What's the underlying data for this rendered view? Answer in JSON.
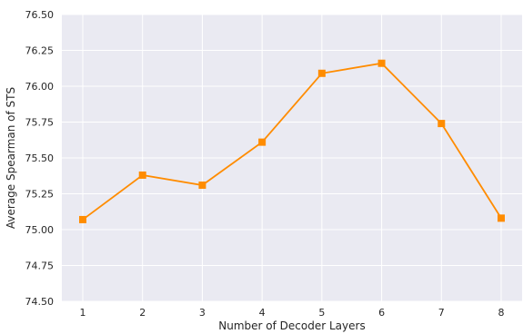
{
  "chart_data": {
    "type": "line",
    "title": "",
    "xlabel": "Number of Decoder Layers",
    "ylabel": "Average Spearman of STS",
    "x": [
      1,
      2,
      3,
      4,
      5,
      6,
      7,
      8
    ],
    "x_tick_labels": [
      "1",
      "2",
      "3",
      "4",
      "5",
      "6",
      "7",
      "8"
    ],
    "y_ticks": [
      74.5,
      74.75,
      75.0,
      75.25,
      75.5,
      75.75,
      76.0,
      76.25,
      76.5
    ],
    "y_tick_labels": [
      "74.50",
      "74.75",
      "75.00",
      "75.25",
      "75.50",
      "75.75",
      "76.00",
      "76.25",
      "76.50"
    ],
    "ylim": [
      74.5,
      76.5
    ],
    "xlim": [
      0.65,
      8.35
    ],
    "grid": true,
    "series": [
      {
        "values": [
          75.07,
          75.38,
          75.31,
          75.61,
          76.09,
          76.16,
          75.74,
          75.08
        ],
        "color": "#ff8c00",
        "marker": "square"
      }
    ],
    "background_color": "#eaeaf2",
    "grid_color": "#ffffff"
  }
}
